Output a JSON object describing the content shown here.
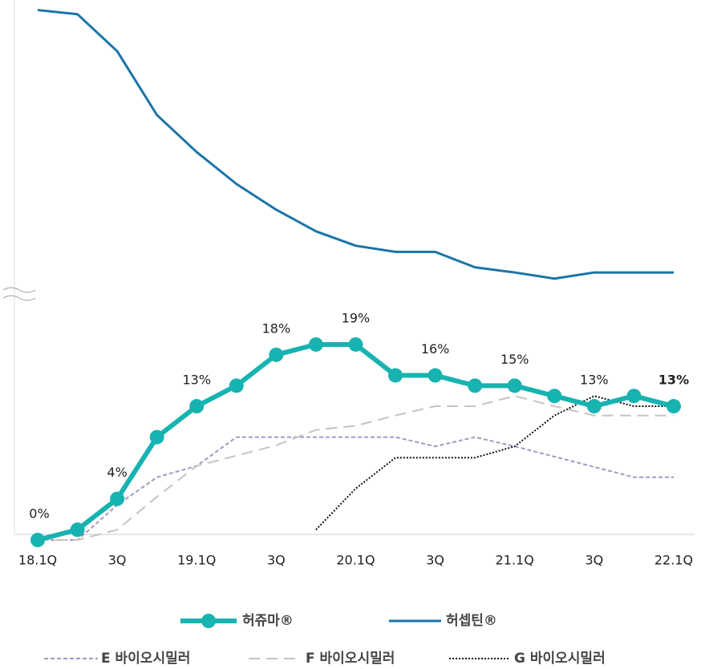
{
  "chart_data": {
    "type": "line",
    "categories": [
      "18.1Q",
      null,
      "3Q",
      null,
      "19.1Q",
      null,
      "3Q",
      null,
      "20.1Q",
      null,
      "3Q",
      null,
      "21.1Q",
      null,
      "3Q",
      null,
      "22.1Q"
    ],
    "ylim": [
      0,
      52.4
    ],
    "series": [
      {
        "name": "허쥬마®",
        "color": "#17b3b0",
        "values": [
          0,
          1,
          4,
          10,
          13,
          15,
          18,
          19,
          19,
          16,
          16,
          15,
          15,
          14,
          13,
          14,
          13
        ],
        "value_labels": [
          "0%",
          null,
          "4%",
          null,
          "13%",
          null,
          "18%",
          null,
          "19%",
          null,
          "16%",
          null,
          "15%",
          null,
          "13%",
          null,
          "13%"
        ]
      },
      {
        "name": "허셉틴®",
        "color": "#1a75a8",
        "values": [
          51.5,
          51.1,
          47.5,
          41.3,
          37.7,
          34.6,
          32.1,
          30.0,
          28.6,
          28.0,
          28.0,
          26.5,
          26.0,
          25.4,
          26.0,
          26.0,
          26.0
        ]
      },
      {
        "name": "E 바이오시밀러",
        "color": "#a795c6",
        "values": [
          0,
          0,
          3.4,
          6.1,
          7.2,
          10,
          10,
          10,
          10,
          10,
          9.1,
          10,
          9.1,
          8.1,
          7.1,
          6.1,
          6.1
        ]
      },
      {
        "name": "F 바이오시밀러",
        "color": "#c4c4c4",
        "values": [
          0,
          0,
          1,
          4.2,
          7.2,
          8.2,
          9.2,
          10.7,
          11.1,
          12.1,
          13,
          13,
          14,
          13,
          12.1,
          12.1,
          12.1
        ]
      },
      {
        "name": "G 바이오시밀러",
        "color": "#111111",
        "values": [
          null,
          null,
          null,
          null,
          null,
          null,
          null,
          1,
          5,
          8,
          8,
          8,
          9.1,
          12.1,
          14,
          13,
          13
        ]
      }
    ]
  }
}
